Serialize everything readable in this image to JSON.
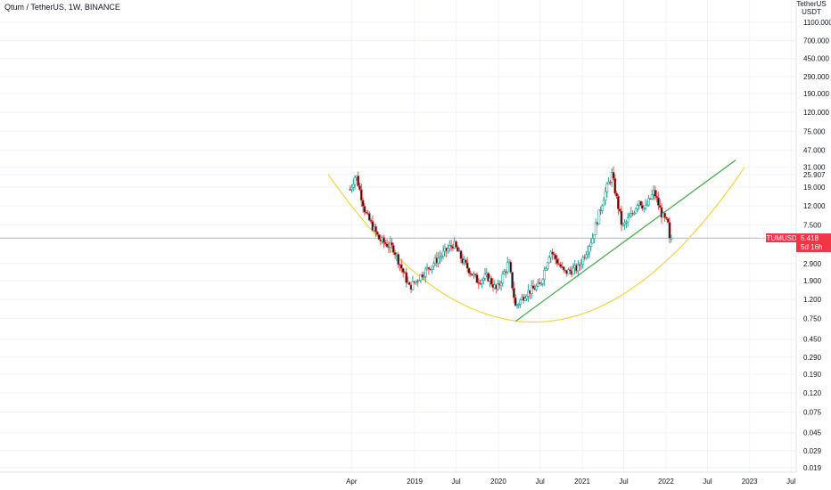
{
  "header": {
    "title": "Qtum / TetherUS, 1W, BINANCE"
  },
  "price_axis": {
    "currency_label_line1": "TetherUS",
    "currency_label_line2": "USDT"
  },
  "price_badge": {
    "symbol": "QTUMUSDT",
    "price": "5.418",
    "countdown": "5d 16h",
    "color": "#f23645"
  },
  "colors": {
    "up": "#26a69a",
    "down": "#ef5350",
    "body_up": "#ffffff",
    "body_down": "#131722",
    "trendline": "#4caf50",
    "arc": "#f5d442",
    "price_line": "#b2b5be"
  },
  "chart_data": {
    "type": "candlestick",
    "title": "Qtum / TetherUS, 1W, BINANCE",
    "y_scale": "log",
    "ylim": [
      0.015,
      2000
    ],
    "y_ticks": [
      "1100.000",
      "700.000",
      "450.000",
      "290.000",
      "190.000",
      "120.000",
      "75.000",
      "47.000",
      "31.000",
      "25.907",
      "19.000",
      "12.000",
      "7.500",
      "5.418",
      "2.900",
      "1.900",
      "1.200",
      "0.750",
      "0.450",
      "0.290",
      "0.190",
      "0.120",
      "0.075",
      "0.045",
      "0.029",
      "0.019"
    ],
    "x_ticks": [
      "Apr",
      "2019",
      "Jul",
      "2020",
      "Jul",
      "2021",
      "Jul",
      "2022",
      "Jul",
      "2023",
      "Jul"
    ],
    "anchors": [
      {
        "date": "2018-03-26",
        "price": 18
      },
      {
        "date": "2018-04-20",
        "price": 26
      },
      {
        "date": "2018-06-01",
        "price": 10
      },
      {
        "date": "2018-08-01",
        "price": 5.2
      },
      {
        "date": "2018-10-01",
        "price": 4.2
      },
      {
        "date": "2018-12-10",
        "price": 1.6
      },
      {
        "date": "2019-02-01",
        "price": 2.2
      },
      {
        "date": "2019-04-20",
        "price": 3.4
      },
      {
        "date": "2019-06-20",
        "price": 4.7
      },
      {
        "date": "2019-08-01",
        "price": 3.0
      },
      {
        "date": "2019-10-01",
        "price": 1.9
      },
      {
        "date": "2019-11-15",
        "price": 2.1
      },
      {
        "date": "2019-12-25",
        "price": 1.5
      },
      {
        "date": "2020-02-15",
        "price": 3.0
      },
      {
        "date": "2020-03-16",
        "price": 1.0
      },
      {
        "date": "2020-05-01",
        "price": 1.4
      },
      {
        "date": "2020-07-01",
        "price": 1.7
      },
      {
        "date": "2020-08-15",
        "price": 4.0
      },
      {
        "date": "2020-10-15",
        "price": 2.3
      },
      {
        "date": "2020-12-15",
        "price": 2.6
      },
      {
        "date": "2021-02-15",
        "price": 5.5
      },
      {
        "date": "2021-04-05",
        "price": 15
      },
      {
        "date": "2021-05-10",
        "price": 26
      },
      {
        "date": "2021-06-25",
        "price": 7.0
      },
      {
        "date": "2021-08-10",
        "price": 10
      },
      {
        "date": "2021-09-05",
        "price": 14
      },
      {
        "date": "2021-10-01",
        "price": 11
      },
      {
        "date": "2021-11-10",
        "price": 17
      },
      {
        "date": "2021-12-15",
        "price": 9.5
      },
      {
        "date": "2022-01-10",
        "price": 7.5
      },
      {
        "date": "2022-01-24",
        "price": 5.418
      }
    ],
    "trendline": {
      "from": {
        "date": "2020-03-16",
        "price": 0.7
      },
      "to": {
        "date": "2022-11-01",
        "price": 37
      }
    },
    "arc": {
      "start": {
        "date": "2017-12-20",
        "price": 26
      },
      "bottom": {
        "date": "2020-04-01",
        "price": 0.7
      },
      "end": {
        "date": "2022-12-10",
        "price": 31
      }
    },
    "last_price": 5.418,
    "grid": true
  }
}
